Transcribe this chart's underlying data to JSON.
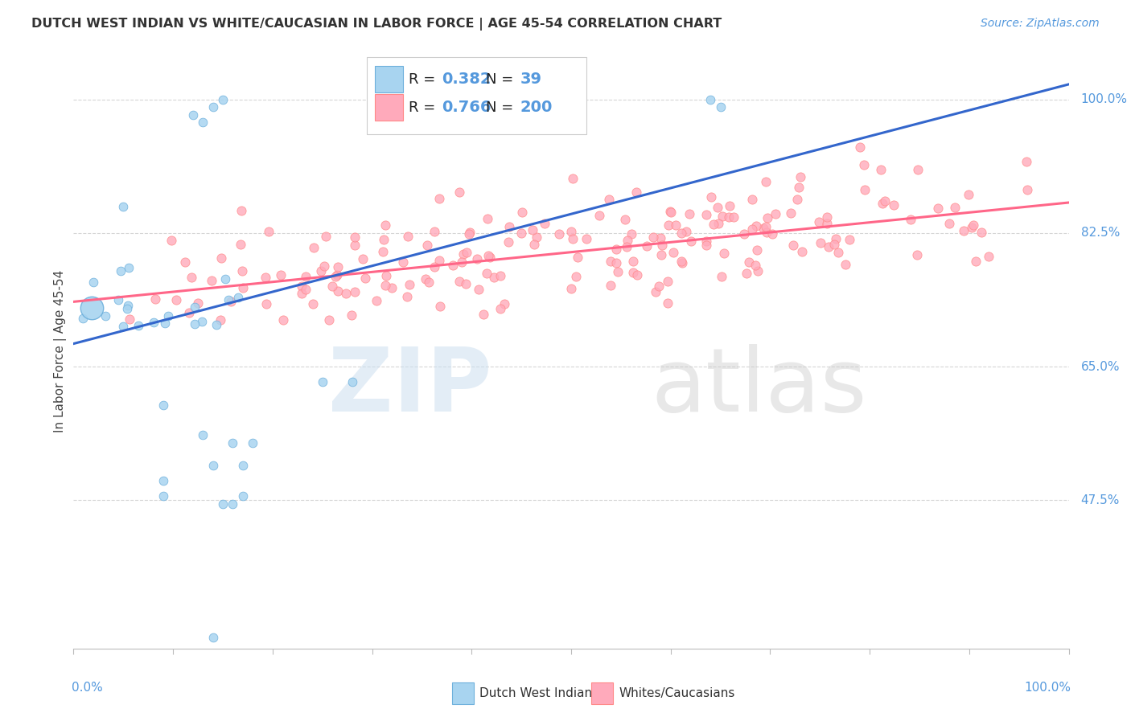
{
  "title": "DUTCH WEST INDIAN VS WHITE/CAUCASIAN IN LABOR FORCE | AGE 45-54 CORRELATION CHART",
  "source": "Source: ZipAtlas.com",
  "ylabel_labels": [
    "47.5%",
    "65.0%",
    "82.5%",
    "100.0%"
  ],
  "ylabel_values": [
    0.475,
    0.65,
    0.825,
    1.0
  ],
  "R_blue": 0.382,
  "N_blue": 39,
  "R_pink": 0.766,
  "N_pink": 200,
  "blue_fill": "#A8D4F0",
  "blue_edge": "#6EB0DC",
  "pink_fill": "#FFAABB",
  "pink_edge": "#FF8888",
  "trend_blue": "#3366CC",
  "trend_pink": "#FF6688",
  "background": "#FFFFFF",
  "title_color": "#333333",
  "axis_label_color": "#5599DD",
  "grid_color": "#CCCCCC",
  "pink_trend_x0": 0.0,
  "pink_trend_y0": 0.735,
  "pink_trend_x1": 1.0,
  "pink_trend_y1": 0.865,
  "blue_trend_x0": 0.0,
  "blue_trend_y0": 0.68,
  "blue_trend_x1": 1.0,
  "blue_trend_y1": 1.02,
  "ylim_min": 0.28,
  "ylim_max": 1.06,
  "xlim_min": 0.0,
  "xlim_max": 1.0,
  "legend_blue_text1": "R = ",
  "legend_blue_val1": "0.382",
  "legend_blue_text2": "  N =  ",
  "legend_blue_val2": "39",
  "legend_pink_text1": "R = ",
  "legend_pink_val1": "0.766",
  "legend_pink_text2": "  N = ",
  "legend_pink_val2": "200",
  "bottom_label1": "Dutch West Indians",
  "bottom_label2": "Whites/Caucasians",
  "ylabel": "In Labor Force | Age 45-54",
  "watermark_zip": "ZIP",
  "watermark_atlas": "atlas"
}
